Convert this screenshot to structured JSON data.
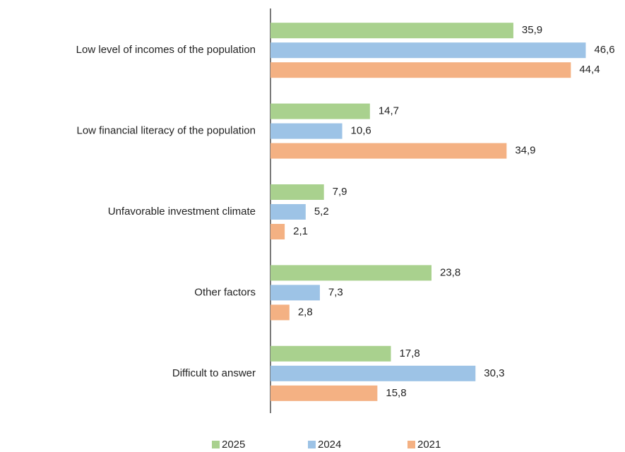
{
  "chart_data": {
    "type": "bar",
    "orientation": "horizontal",
    "categories": [
      "Low level of incomes of the population",
      "Low financial literacy of the population",
      "Unfavorable investment climate",
      "Other factors",
      "Difficult to answer"
    ],
    "series": [
      {
        "name": "2025",
        "color": "#a9d18e",
        "values": [
          35.9,
          14.7,
          7.9,
          23.8,
          17.8
        ],
        "value_labels": [
          "35,9",
          "14,7",
          "7,9",
          "23,8",
          "17,8"
        ]
      },
      {
        "name": "2024",
        "color": "#9dc3e6",
        "values": [
          46.6,
          10.6,
          5.2,
          7.3,
          30.3
        ],
        "value_labels": [
          "46,6",
          "10,6",
          "5,2",
          "7,3",
          "30,3"
        ]
      },
      {
        "name": "2021",
        "color": "#f4b183",
        "values": [
          44.4,
          34.9,
          2.1,
          2.8,
          15.8
        ],
        "value_labels": [
          "44,4",
          "34,9",
          "2,1",
          "2,8",
          "15,8"
        ]
      }
    ],
    "xlim": [
      0,
      50
    ],
    "legend": "bottom"
  }
}
